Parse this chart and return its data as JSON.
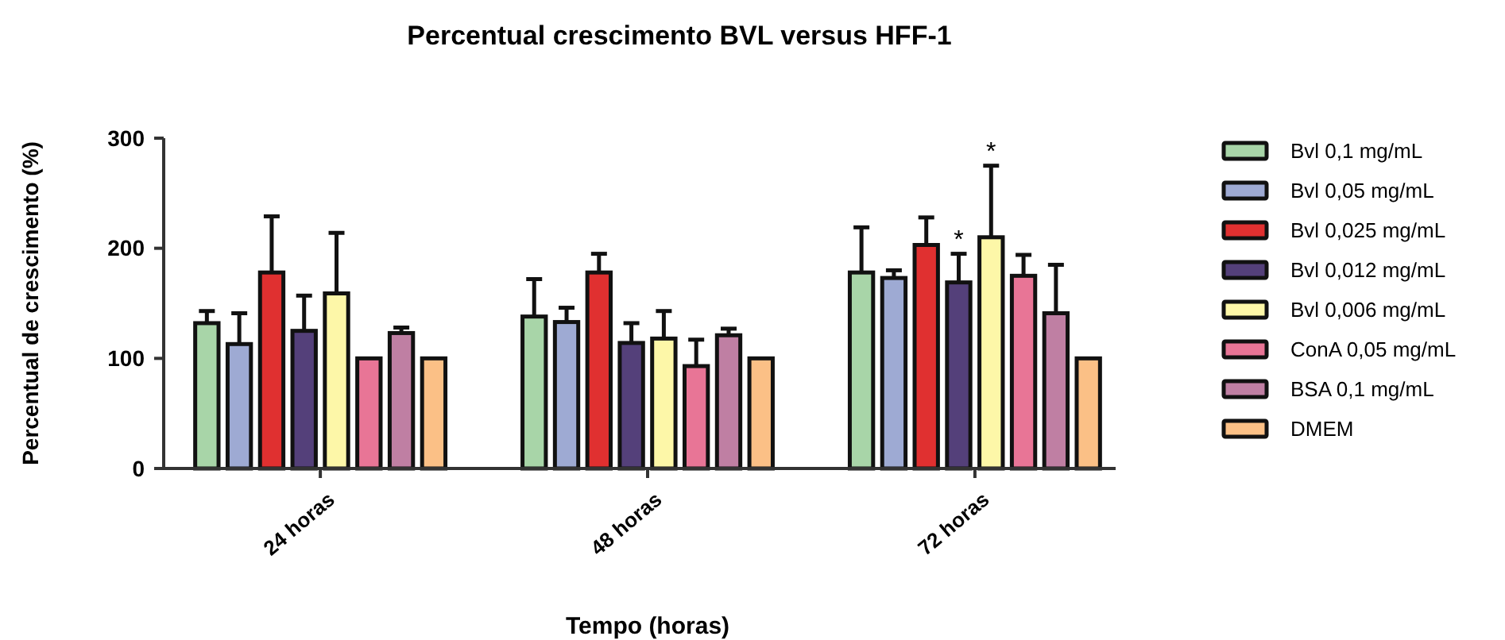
{
  "chart_data": {
    "type": "bar",
    "title": "Percentual crescimento BVL versus HFF-1",
    "xlabel": "Tempo (horas)",
    "ylabel": "Percentual de crescimento (%)",
    "categories": [
      "24 horas",
      "48 horas",
      "72 horas"
    ],
    "ylim": [
      0,
      300
    ],
    "yticks": [
      0,
      100,
      200,
      300
    ],
    "grid": false,
    "legend": "right",
    "series": [
      {
        "name": "Bvl 0,1 mg/mL",
        "color": "#a8d5a8",
        "values": [
          132,
          138,
          178
        ],
        "errors": [
          [
            132,
            143
          ],
          [
            138,
            172
          ],
          [
            178,
            219
          ]
        ]
      },
      {
        "name": "Bvl 0,05 mg/mL",
        "color": "#9eaad3",
        "values": [
          113,
          133,
          173
        ],
        "errors": [
          [
            113,
            141
          ],
          [
            133,
            146
          ],
          [
            173,
            180
          ]
        ]
      },
      {
        "name": "Bvl 0,025 mg/mL",
        "color": "#e03030",
        "values": [
          178,
          178,
          203
        ],
        "errors": [
          [
            178,
            229
          ],
          [
            178,
            195
          ],
          [
            203,
            228
          ]
        ]
      },
      {
        "name": "Bvl 0,012 mg/mL",
        "color": "#54407a",
        "values": [
          125,
          114,
          169
        ],
        "errors": [
          [
            125,
            157
          ],
          [
            114,
            132
          ],
          [
            169,
            195
          ]
        ]
      },
      {
        "name": "Bvl 0,006 mg/mL",
        "color": "#fdf7a8",
        "values": [
          159,
          118,
          210
        ],
        "errors": [
          [
            159,
            214
          ],
          [
            118,
            143
          ],
          [
            210,
            275
          ]
        ]
      },
      {
        "name": "ConA 0,05 mg/mL",
        "color": "#e87596",
        "values": [
          100,
          93,
          175
        ],
        "errors": [
          null,
          [
            93,
            117
          ],
          [
            175,
            194
          ]
        ]
      },
      {
        "name": "BSA 0,1 mg/mL",
        "color": "#bf7fa3",
        "values": [
          123,
          121,
          141
        ],
        "errors": [
          [
            123,
            128
          ],
          [
            121,
            127
          ],
          [
            141,
            185
          ]
        ]
      },
      {
        "name": "DMEM",
        "color": "#fbc086",
        "values": [
          100,
          100,
          100
        ],
        "errors": [
          null,
          null,
          null
        ]
      }
    ],
    "annotations": [
      {
        "text": "*",
        "x": "72 horas",
        "y": 169
      },
      {
        "text": "*",
        "x": "72 horas",
        "y": 210
      }
    ]
  }
}
